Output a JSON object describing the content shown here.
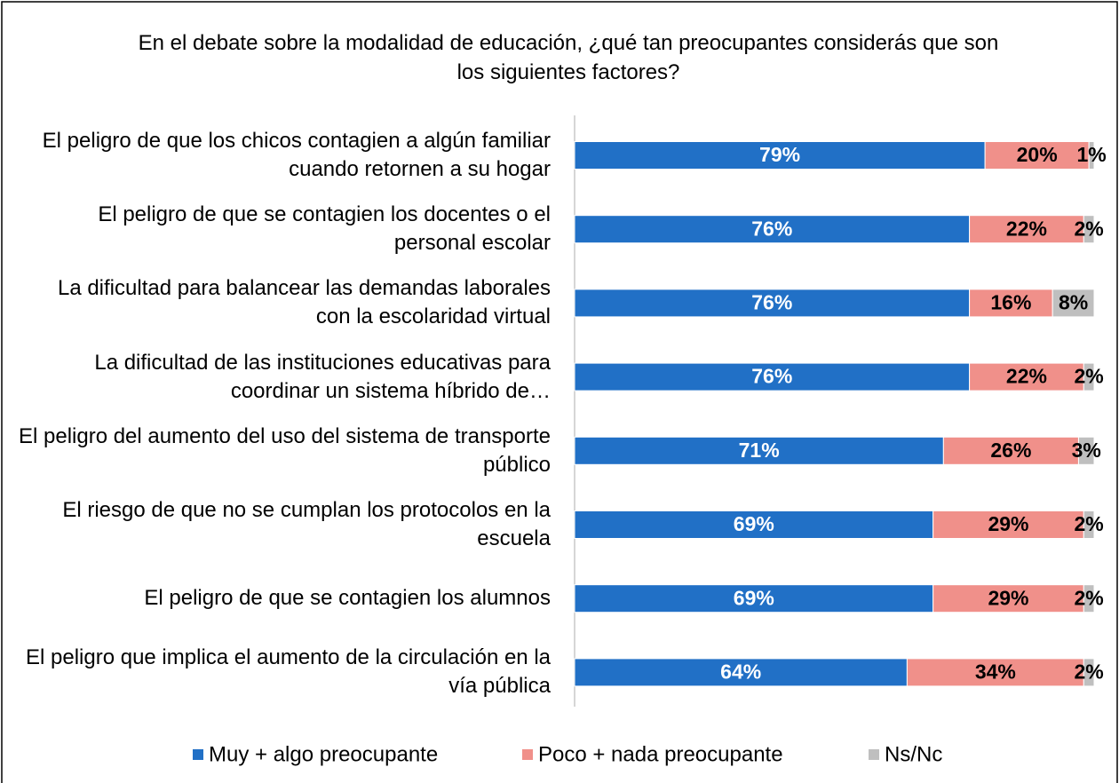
{
  "chart_data": {
    "type": "stacked_bar_horizontal",
    "title": "En el debate sobre la modalidad de educación, ¿qué tan preocupantes considerás que son los siguientes factores?",
    "categories": [
      "El peligro de que los chicos contagien a algún familiar cuando retornen a su hogar",
      "El peligro de que se contagien los docentes o el personal escolar",
      "La dificultad para balancear las demandas laborales con la escolaridad virtual",
      "La dificultad de las instituciones educativas para coordinar un sistema híbrido de…",
      "El peligro del aumento del uso del sistema de transporte público",
      "El riesgo de que no se cumplan los protocolos en la escuela",
      "El peligro de que se contagien los alumnos",
      "El peligro que implica el aumento de la circulación en la vía pública"
    ],
    "series": [
      {
        "name": "Muy + algo preocupante",
        "color": "#2170c6",
        "values": [
          79,
          76,
          76,
          76,
          71,
          69,
          69,
          64
        ],
        "value_labels": [
          "79%",
          "76%",
          "76%",
          "76%",
          "71%",
          "69%",
          "69%",
          "64%"
        ]
      },
      {
        "name": "Poco + nada preocupante",
        "color": "#f0908a",
        "values": [
          20,
          22,
          16,
          22,
          26,
          29,
          29,
          34
        ],
        "value_labels": [
          "20%",
          "22%",
          "16%",
          "22%",
          "26%",
          "29%",
          "29%",
          "34%"
        ]
      },
      {
        "name": "Ns/Nc",
        "color": "#bfbfbf",
        "values": [
          1,
          2,
          8,
          2,
          3,
          2,
          2,
          2
        ],
        "value_labels": [
          "1%",
          "2%",
          "8%",
          "2%",
          "3%",
          "2%",
          "2%",
          "2%"
        ]
      }
    ],
    "xlim": [
      0,
      100
    ],
    "legend": "bottom"
  }
}
